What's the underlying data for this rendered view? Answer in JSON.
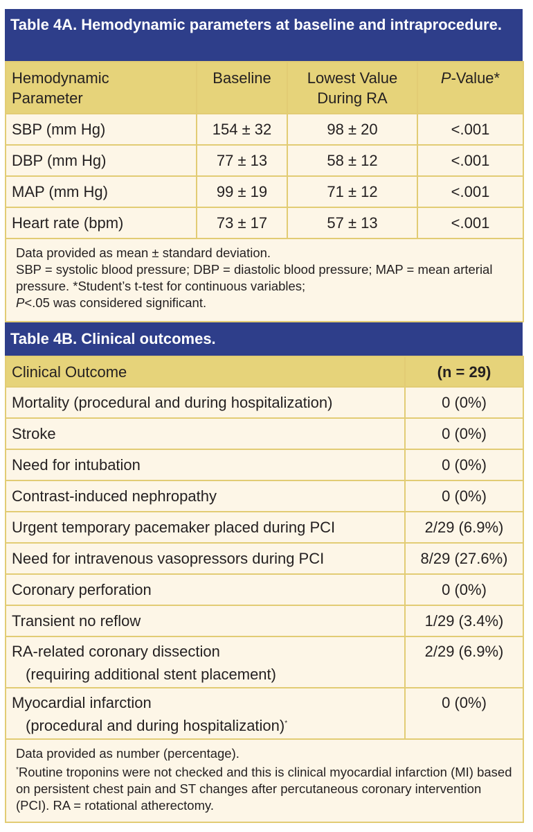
{
  "table4a": {
    "title": "Table 4A. Hemodynamic parameters at baseline and intraprocedure.",
    "headers": {
      "param_line1": "Hemodynamic",
      "param_line2": "Parameter",
      "baseline": "Baseline",
      "lowest_line1": "Lowest Value",
      "lowest_line2": "During RA",
      "p_italic": "P",
      "p_rest": "-Value*"
    },
    "rows": [
      {
        "param": "SBP (mm Hg)",
        "baseline": "154 ± 32",
        "lowest": "98 ± 20",
        "p": "<.001"
      },
      {
        "param": "DBP (mm Hg)",
        "baseline": "77 ± 13",
        "lowest": "58 ± 12",
        "p": "<.001"
      },
      {
        "param": "MAP (mm Hg)",
        "baseline": "99 ± 19",
        "lowest": "71 ± 12",
        "p": "<.001"
      },
      {
        "param": "Heart rate (bpm)",
        "baseline": "73 ± 17",
        "lowest": "57 ± 13",
        "p": "<.001"
      }
    ],
    "footnote": {
      "line1": "Data provided as mean ± standard deviation.",
      "line2": "SBP = systolic blood pressure; DBP = diastolic blood pressure; MAP = mean arterial pressure. *Student’s t-test for continuous variables;",
      "p_italic": "P",
      "line3": "<.05 was considered significant."
    }
  },
  "table4b": {
    "title": "Table 4B. Clinical outcomes.",
    "headers": {
      "outcome": "Clinical Outcome",
      "n": "(n = 29)"
    },
    "rows": [
      {
        "outcome": "Mortality (procedural and during hospitalization)",
        "value": "0 (0%)"
      },
      {
        "outcome": "Stroke",
        "value": "0 (0%)"
      },
      {
        "outcome": "Need for intubation",
        "value": "0 (0%)"
      },
      {
        "outcome": "Contrast-induced nephropathy",
        "value": "0 (0%)"
      },
      {
        "outcome": "Urgent temporary pacemaker placed during PCI",
        "value": "2/29 (6.9%)"
      },
      {
        "outcome": "Need for intravenous vasopressors during PCI",
        "value": "8/29 (27.6%)"
      },
      {
        "outcome": "Coronary perforation",
        "value": "0 (0%)"
      },
      {
        "outcome": "Transient no reflow",
        "value": "1/29 (3.4%)"
      }
    ],
    "two_line_rows": [
      {
        "line1": "RA-related coronary dissection",
        "line2": "(requiring additional stent placement)",
        "mark": "",
        "value": "2/29 (6.9%)"
      },
      {
        "line1": "Myocardial infarction",
        "line2": "(procedural and during hospitalization)",
        "mark": "*",
        "value": "0 (0%)"
      }
    ],
    "footnote": {
      "line1": "Data provided as number (percentage).",
      "mark": "*",
      "line2": "Routine troponins were not checked and this is clinical myocardial infarction (MI) based on persistent chest pain and ST changes after percutaneous coronary intervention (PCI). RA = rotational atherectomy."
    }
  },
  "colors": {
    "title_bg": "#2e3e8a",
    "header_bg": "#e6d37a",
    "cell_bg": "#fdf6e7",
    "border": "#e2cc74"
  }
}
